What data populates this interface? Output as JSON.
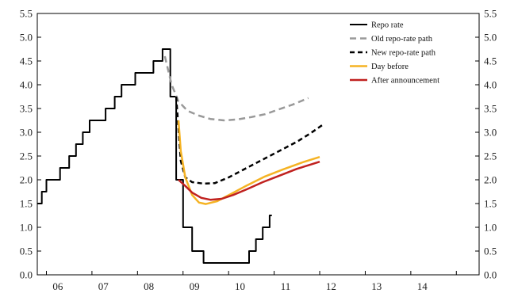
{
  "chart_data": {
    "type": "line",
    "title": "",
    "xlabel": "",
    "ylabel": "",
    "xlim": [
      2005.8,
      2015.5
    ],
    "ylim": [
      0,
      5.5
    ],
    "x_ticks": [
      {
        "x": 2006.25,
        "label": "06"
      },
      {
        "x": 2007.25,
        "label": "07"
      },
      {
        "x": 2008.25,
        "label": "08"
      },
      {
        "x": 2009.25,
        "label": "09"
      },
      {
        "x": 2010.25,
        "label": "10"
      },
      {
        "x": 2011.25,
        "label": "11"
      },
      {
        "x": 2012.25,
        "label": "12"
      },
      {
        "x": 2013.25,
        "label": "13"
      },
      {
        "x": 2014.25,
        "label": "14"
      }
    ],
    "y_ticks": [
      "0.0",
      "0.5",
      "1.0",
      "1.5",
      "2.0",
      "2.5",
      "3.0",
      "3.5",
      "4.0",
      "4.5",
      "5.0",
      "5.5"
    ],
    "grid": false,
    "legend_position": "top-right",
    "series": [
      {
        "name": "Repo rate",
        "color": "#000000",
        "dash": "solid",
        "width": 2,
        "step": true,
        "points": [
          [
            2005.8,
            1.5
          ],
          [
            2005.9,
            1.75
          ],
          [
            2006.0,
            2.0
          ],
          [
            2006.3,
            2.25
          ],
          [
            2006.5,
            2.5
          ],
          [
            2006.65,
            2.75
          ],
          [
            2006.8,
            3.0
          ],
          [
            2006.95,
            3.25
          ],
          [
            2007.3,
            3.5
          ],
          [
            2007.5,
            3.75
          ],
          [
            2007.65,
            4.0
          ],
          [
            2007.95,
            4.25
          ],
          [
            2008.35,
            4.5
          ],
          [
            2008.55,
            4.75
          ],
          [
            2008.72,
            3.75
          ],
          [
            2008.85,
            2.0
          ],
          [
            2009.0,
            1.0
          ],
          [
            2009.2,
            0.5
          ],
          [
            2009.45,
            0.25
          ],
          [
            2010.45,
            0.5
          ],
          [
            2010.6,
            0.75
          ],
          [
            2010.75,
            1.0
          ],
          [
            2010.9,
            1.25
          ],
          [
            2010.95,
            1.25
          ]
        ]
      },
      {
        "name": "Old repo-rate path",
        "color": "#999999",
        "dash": "8,5",
        "width": 2.5,
        "step": false,
        "points": [
          [
            2008.6,
            4.6
          ],
          [
            2008.75,
            4.0
          ],
          [
            2008.9,
            3.65
          ],
          [
            2009.1,
            3.45
          ],
          [
            2009.35,
            3.35
          ],
          [
            2009.6,
            3.28
          ],
          [
            2009.9,
            3.25
          ],
          [
            2010.2,
            3.27
          ],
          [
            2010.5,
            3.32
          ],
          [
            2010.8,
            3.38
          ],
          [
            2011.1,
            3.48
          ],
          [
            2011.4,
            3.58
          ],
          [
            2011.75,
            3.72
          ]
        ]
      },
      {
        "name": "New repo-rate path",
        "color": "#000000",
        "dash": "6,4",
        "width": 2.5,
        "step": false,
        "points": [
          [
            2008.85,
            3.75
          ],
          [
            2008.95,
            2.4
          ],
          [
            2009.05,
            2.05
          ],
          [
            2009.2,
            1.95
          ],
          [
            2009.45,
            1.92
          ],
          [
            2009.7,
            1.93
          ],
          [
            2010.0,
            2.05
          ],
          [
            2010.3,
            2.2
          ],
          [
            2010.6,
            2.35
          ],
          [
            2010.9,
            2.5
          ],
          [
            2011.2,
            2.65
          ],
          [
            2011.5,
            2.8
          ],
          [
            2011.8,
            2.98
          ],
          [
            2012.1,
            3.18
          ]
        ]
      },
      {
        "name": "Day before",
        "color": "#F5B324",
        "dash": "solid",
        "width": 2.5,
        "step": false,
        "points": [
          [
            2008.9,
            3.25
          ],
          [
            2008.95,
            2.6
          ],
          [
            2009.05,
            2.05
          ],
          [
            2009.2,
            1.68
          ],
          [
            2009.35,
            1.52
          ],
          [
            2009.5,
            1.49
          ],
          [
            2009.75,
            1.55
          ],
          [
            2010.05,
            1.7
          ],
          [
            2010.4,
            1.88
          ],
          [
            2010.8,
            2.07
          ],
          [
            2011.2,
            2.22
          ],
          [
            2011.6,
            2.36
          ],
          [
            2012.0,
            2.48
          ]
        ]
      },
      {
        "name": "After announcement",
        "color": "#C0211F",
        "dash": "solid",
        "width": 2.5,
        "step": false,
        "points": [
          [
            2008.9,
            2.0
          ],
          [
            2009.05,
            1.87
          ],
          [
            2009.2,
            1.73
          ],
          [
            2009.4,
            1.62
          ],
          [
            2009.6,
            1.58
          ],
          [
            2009.85,
            1.6
          ],
          [
            2010.1,
            1.68
          ],
          [
            2010.4,
            1.8
          ],
          [
            2010.75,
            1.95
          ],
          [
            2011.1,
            2.08
          ],
          [
            2011.5,
            2.23
          ],
          [
            2011.8,
            2.32
          ],
          [
            2012.0,
            2.38
          ]
        ]
      }
    ]
  }
}
